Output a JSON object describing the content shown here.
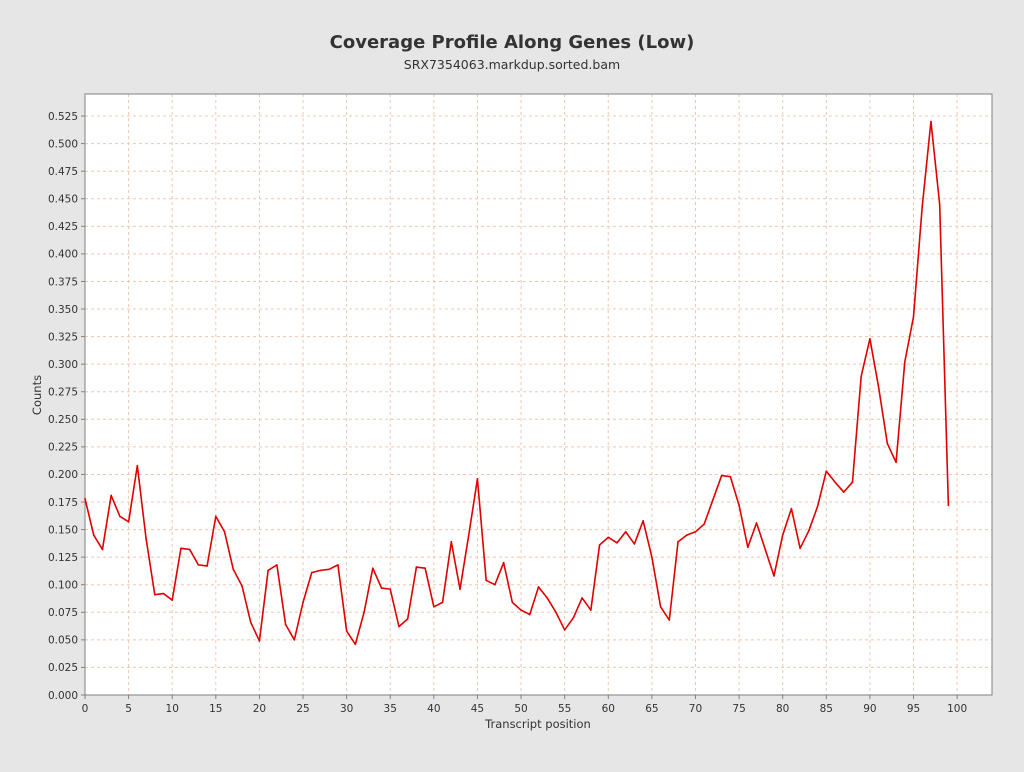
{
  "colors": {
    "background": "#e6e6e6",
    "plot_background": "#ffffff",
    "grid": "#f0c8b0",
    "line": "#e00000",
    "frame": "#808080",
    "text": "#333333"
  },
  "chart_data": {
    "type": "line",
    "title": "Coverage Profile Along Genes (Low)",
    "subtitle": "SRX7354063.markdup.sorted.bam",
    "xlabel": "Transcript position",
    "ylabel": "Counts",
    "xlim": [
      0,
      104
    ],
    "ylim": [
      0,
      0.545
    ],
    "x_ticks": [
      0,
      5,
      10,
      15,
      20,
      25,
      30,
      35,
      40,
      45,
      50,
      55,
      60,
      65,
      70,
      75,
      80,
      85,
      90,
      95,
      100
    ],
    "y_ticks": [
      "0.000",
      "0.025",
      "0.050",
      "0.075",
      "0.100",
      "0.125",
      "0.150",
      "0.175",
      "0.200",
      "0.225",
      "0.250",
      "0.275",
      "0.300",
      "0.325",
      "0.350",
      "0.375",
      "0.400",
      "0.425",
      "0.450",
      "0.475",
      "0.500",
      "0.525"
    ],
    "grid": true,
    "series": [
      {
        "x": [
          0,
          1,
          2,
          3,
          4,
          5,
          6,
          7,
          8,
          9,
          10,
          11,
          12,
          13,
          14,
          15,
          16,
          17,
          18,
          19,
          20,
          21,
          22,
          23,
          24,
          25,
          26,
          27,
          28,
          29,
          30,
          31,
          32,
          33,
          34,
          35,
          36,
          37,
          38,
          39,
          40,
          41,
          42,
          43,
          44,
          45,
          46,
          47,
          48,
          49,
          50,
          51,
          52,
          53,
          54,
          55,
          56,
          57,
          58,
          59,
          60,
          61,
          62,
          63,
          64,
          65,
          66,
          67,
          68,
          69,
          70,
          71,
          72,
          73,
          74,
          75,
          76,
          77,
          78,
          79,
          80,
          81,
          82,
          83,
          84,
          85,
          86,
          87,
          88,
          89,
          90,
          91,
          92,
          93,
          94,
          95,
          96,
          97,
          98,
          99
        ],
        "values": [
          0.178,
          0.145,
          0.132,
          0.181,
          0.162,
          0.157,
          0.208,
          0.142,
          0.091,
          0.092,
          0.086,
          0.133,
          0.132,
          0.118,
          0.117,
          0.162,
          0.148,
          0.114,
          0.099,
          0.066,
          0.049,
          0.113,
          0.118,
          0.064,
          0.05,
          0.084,
          0.111,
          0.113,
          0.114,
          0.118,
          0.058,
          0.046,
          0.075,
          0.115,
          0.097,
          0.096,
          0.062,
          0.069,
          0.116,
          0.115,
          0.08,
          0.084,
          0.139,
          0.096,
          0.145,
          0.196,
          0.104,
          0.1,
          0.12,
          0.084,
          0.077,
          0.073,
          0.098,
          0.088,
          0.075,
          0.059,
          0.07,
          0.088,
          0.077,
          0.136,
          0.143,
          0.138,
          0.148,
          0.137,
          0.158,
          0.125,
          0.08,
          0.068,
          0.139,
          0.145,
          0.148,
          0.155,
          0.177,
          0.199,
          0.198,
          0.172,
          0.134,
          0.156,
          0.132,
          0.108,
          0.145,
          0.169,
          0.133,
          0.149,
          0.171,
          0.203,
          0.193,
          0.184,
          0.193,
          0.289,
          0.323,
          0.279,
          0.228,
          0.211,
          0.302,
          0.343,
          0.443,
          0.52,
          0.445,
          0.172
        ]
      }
    ]
  }
}
